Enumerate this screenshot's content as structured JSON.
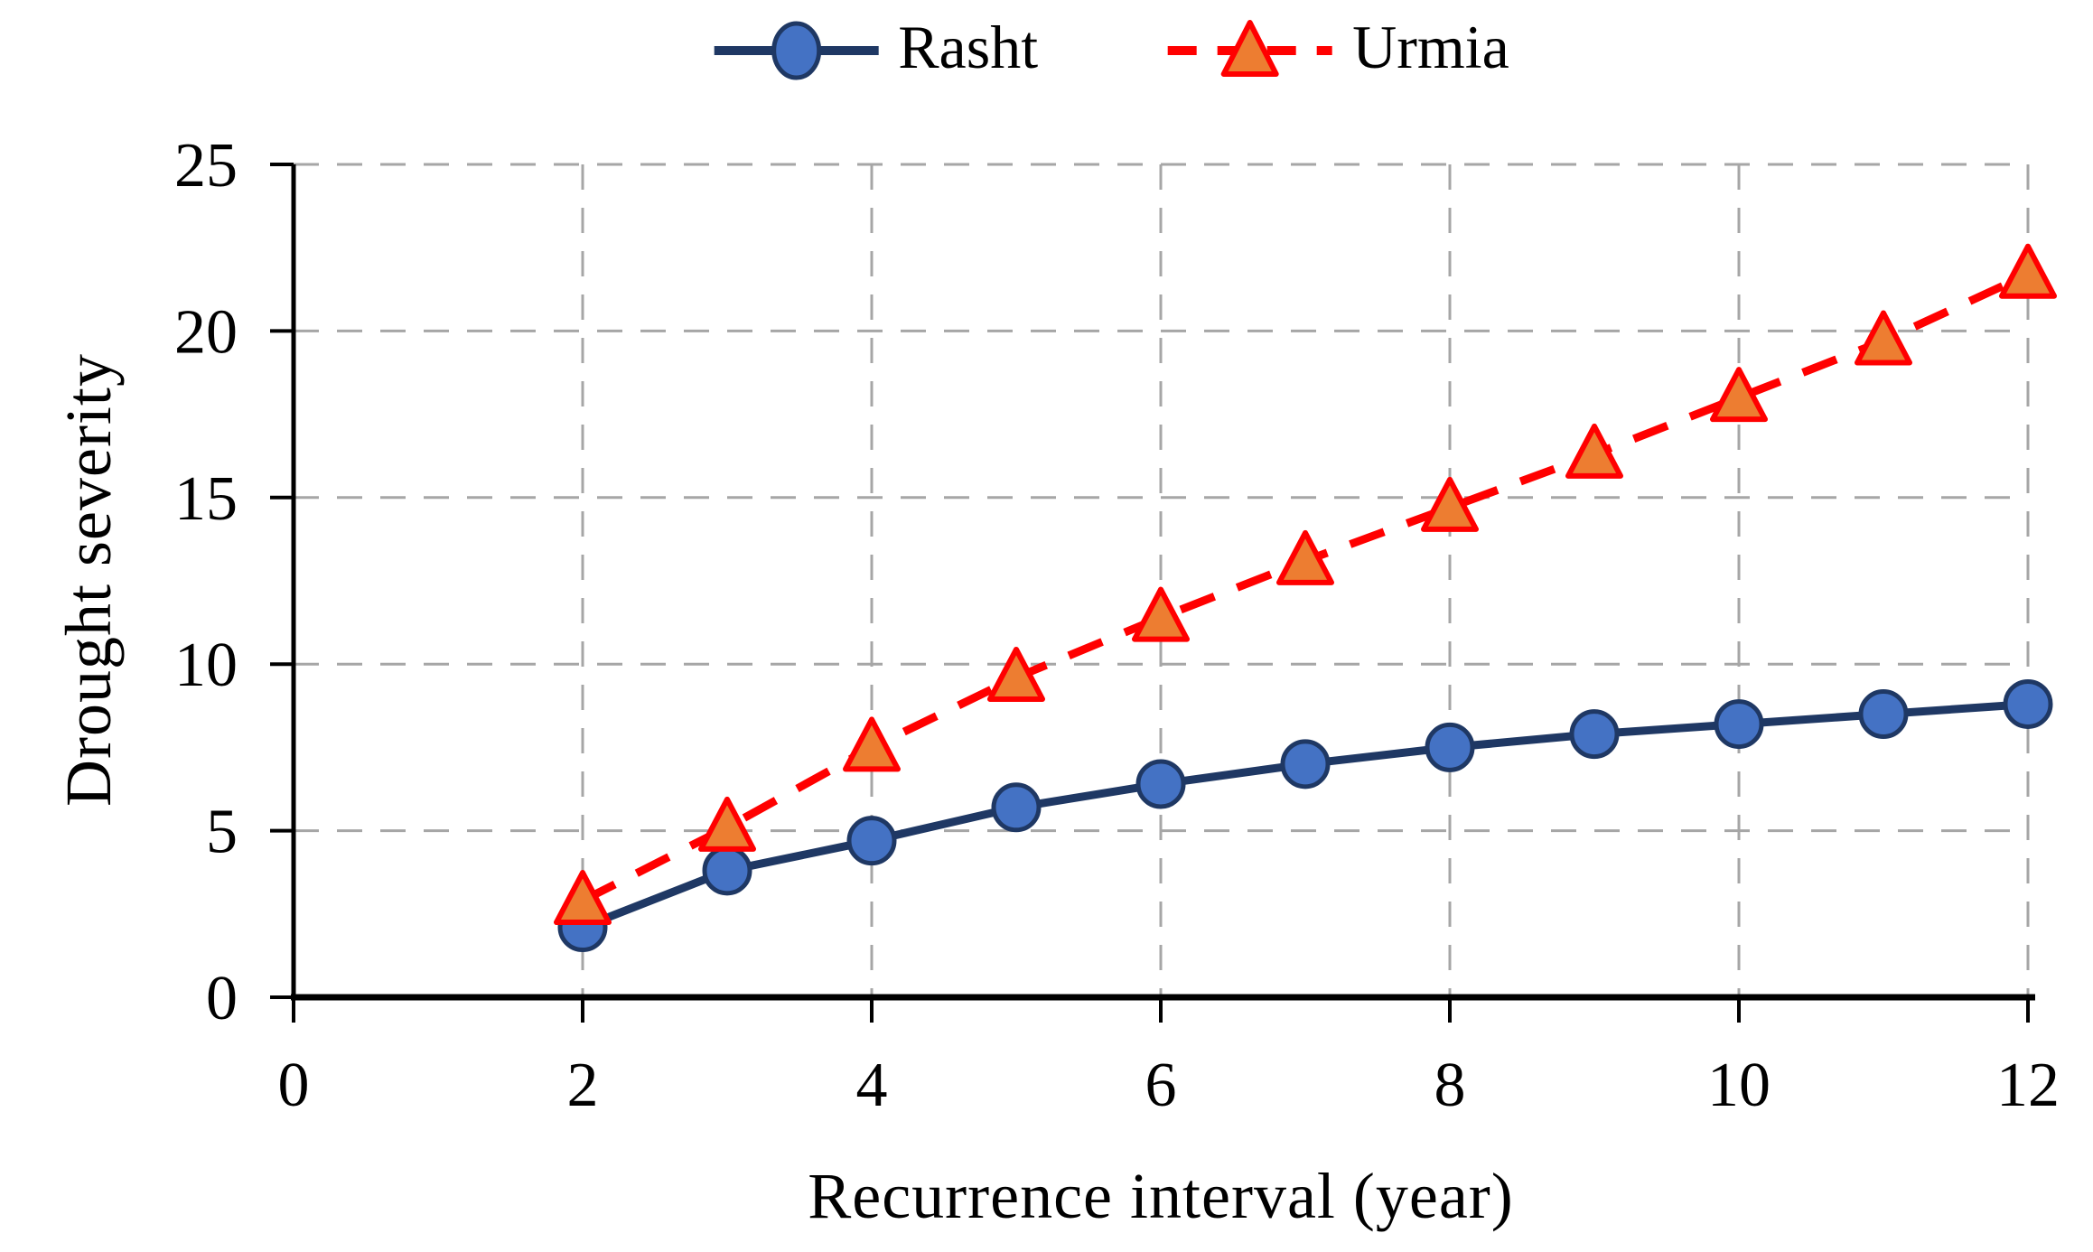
{
  "figure": {
    "background": "#ffffff"
  },
  "legend": {
    "items": [
      {
        "label": "Rasht"
      },
      {
        "label": "Urmia"
      }
    ]
  },
  "chart_data": {
    "type": "line",
    "title": "",
    "xlabel": "Recurrence interval (year)",
    "ylabel": "Drought severity",
    "x": [
      2,
      3,
      4,
      5,
      6,
      7,
      8,
      9,
      10,
      11,
      12
    ],
    "series": [
      {
        "name": "Rasht",
        "values": [
          2.1,
          3.8,
          4.7,
          5.7,
          6.4,
          7.0,
          7.5,
          7.9,
          8.2,
          8.5,
          8.8
        ],
        "line_color": "#1F3864",
        "line_style": "solid",
        "marker": "circle",
        "marker_fill": "#4472C4",
        "marker_stroke": "#1F3864"
      },
      {
        "name": "Urmia",
        "values": [
          2.9,
          5.1,
          7.5,
          9.6,
          11.4,
          13.1,
          14.7,
          16.3,
          18.0,
          19.7,
          21.7
        ],
        "line_color": "#FF0000",
        "line_style": "dashed",
        "marker": "triangle",
        "marker_fill": "#ED7D31",
        "marker_stroke": "#FF0000"
      }
    ],
    "xlim": [
      0,
      12
    ],
    "ylim": [
      0,
      25
    ],
    "xticks": [
      0,
      2,
      4,
      6,
      8,
      10,
      12
    ],
    "yticks": [
      0,
      5,
      10,
      15,
      20,
      25
    ],
    "grid": true,
    "gridline_color": "#A6A6A6",
    "axis_color": "#000000",
    "tick_label_color": "#000000",
    "legend_position": "top"
  }
}
